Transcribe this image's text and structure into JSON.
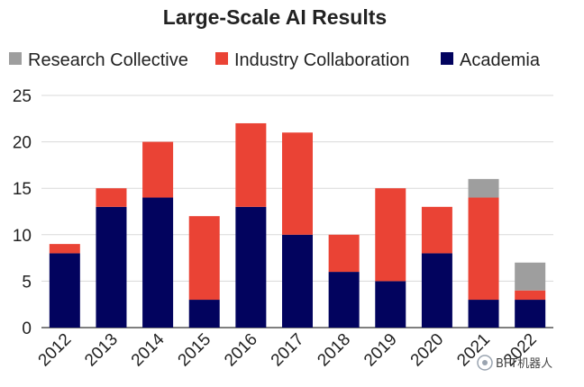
{
  "chart_data": {
    "type": "bar",
    "stacked": true,
    "title": "Large-Scale AI Results",
    "xlabel": "",
    "ylabel": "",
    "categories": [
      "2012",
      "2013",
      "2014",
      "2015",
      "2016",
      "2017",
      "2018",
      "2019",
      "2020",
      "2021",
      "2022"
    ],
    "series": [
      {
        "name": "Academia",
        "color": "#02035e",
        "values": [
          8,
          13,
          14,
          3,
          13,
          10,
          6,
          5,
          8,
          3,
          3
        ]
      },
      {
        "name": "Industry Collaboration",
        "color": "#ea4335",
        "values": [
          1,
          2,
          6,
          9,
          9,
          11,
          4,
          10,
          5,
          11,
          1
        ]
      },
      {
        "name": "Research Collective",
        "color": "#9e9e9e",
        "values": [
          0,
          0,
          0,
          0,
          0,
          0,
          0,
          0,
          0,
          2,
          3
        ]
      }
    ],
    "legend": {
      "placement": "top",
      "order": [
        "Research Collective",
        "Industry Collaboration",
        "Academia"
      ]
    },
    "yticks": [
      "0",
      "5",
      "10",
      "15",
      "20",
      "25"
    ],
    "ylim": [
      0,
      25
    ],
    "grid": true,
    "watermark": "BFT机器人"
  }
}
